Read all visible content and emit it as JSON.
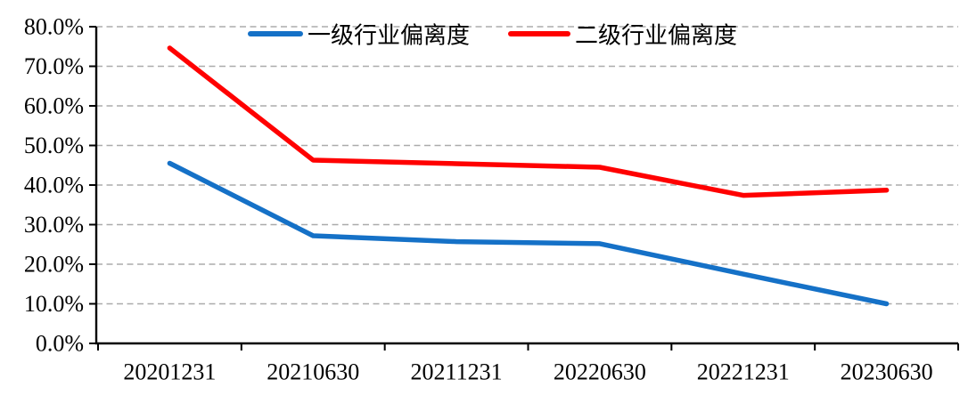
{
  "chart_data": {
    "type": "line",
    "title": "",
    "xlabel": "",
    "ylabel": "",
    "categories": [
      "20201231",
      "20210630",
      "20211231",
      "20220630",
      "20221231",
      "20230630"
    ],
    "series": [
      {
        "name": "一级行业偏离度",
        "color": "#1571C7",
        "values": [
          45.5,
          27.2,
          25.7,
          25.2,
          17.5,
          10.0
        ]
      },
      {
        "name": "二级行业偏离度",
        "color": "#FF0000",
        "values": [
          74.6,
          46.3,
          45.4,
          44.5,
          37.4,
          38.7
        ]
      }
    ],
    "ylim": [
      0,
      80
    ],
    "y_step": 10,
    "y_tick_labels": [
      "0.0%",
      "10.0%",
      "20.0%",
      "30.0%",
      "40.0%",
      "50.0%",
      "60.0%",
      "70.0%",
      "80.0%"
    ],
    "grid": "horizontal-dashed",
    "legend_position": "top-center"
  },
  "colors": {
    "background": "#FFFFFF",
    "gridline": "#ABABAB",
    "axis": "#000000",
    "tick_text": "#000000",
    "series_blue": "#1571C7",
    "series_red": "#FF0000"
  }
}
